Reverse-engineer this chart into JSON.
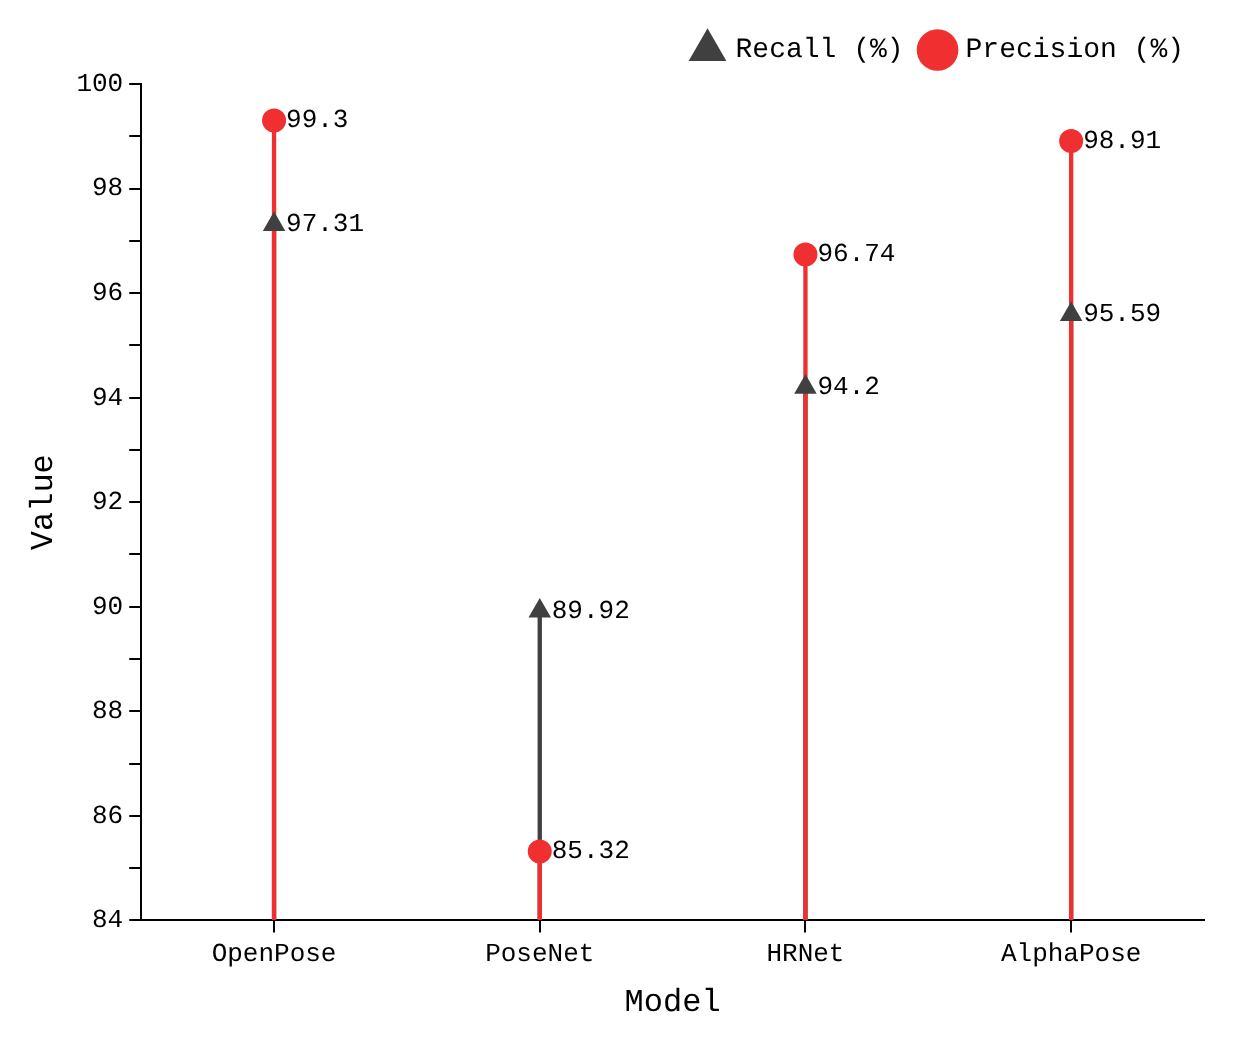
{
  "chart_data": {
    "type": "lollipop",
    "xlabel": "Model",
    "ylabel": "Value",
    "categories": [
      "OpenPose",
      "PoseNet",
      "HRNet",
      "AlphaPose"
    ],
    "series": [
      {
        "name": "Recall (%)",
        "color": "#404040",
        "marker": "triangle",
        "values": [
          97.31,
          89.92,
          94.2,
          95.59
        ]
      },
      {
        "name": "Precision (%)",
        "color": "#f03030",
        "marker": "circle",
        "values": [
          99.3,
          85.32,
          96.74,
          98.91
        ]
      }
    ],
    "ylim": [
      84,
      100
    ],
    "yticks": [
      84,
      {
        "value": 85,
        "label": null
      },
      86,
      {
        "value": 87,
        "label": null
      },
      88,
      {
        "value": 89,
        "label": null
      },
      90,
      {
        "value": 91,
        "label": null
      },
      92,
      {
        "value": 93,
        "label": null
      },
      94,
      {
        "value": 95,
        "label": null
      },
      96,
      {
        "value": 97,
        "label": null
      },
      98,
      {
        "value": 99,
        "label": null
      },
      100
    ],
    "data_labels": true,
    "legend": "top right",
    "grid": false
  }
}
